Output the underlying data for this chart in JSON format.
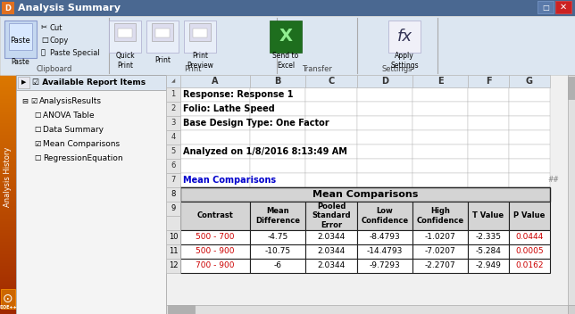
{
  "title_bar": "Analysis Summary",
  "title_bar_bg": "#4a6891",
  "title_bar_fg": "#ffffff",
  "ribbon_bg": "#dce6f1",
  "ribbon_group_labels": [
    "Clipboard",
    "Print",
    "Transfer",
    "Settings"
  ],
  "left_panel_header": "Available Report Items",
  "tree_items": [
    {
      "label": "AnalysisResults",
      "indent": 0,
      "checked": true
    },
    {
      "label": "ANOVA Table",
      "indent": 1,
      "checked": false
    },
    {
      "label": "Data Summary",
      "indent": 1,
      "checked": false
    },
    {
      "label": "Mean Comparisons",
      "indent": 1,
      "checked": true
    },
    {
      "label": "RegressionEquation",
      "indent": 1,
      "checked": false
    }
  ],
  "sidebar_label": "Analysis History",
  "sidebar_logo": "DOE++",
  "col_letters": [
    "A",
    "B",
    "C",
    "D",
    "E",
    "F",
    "G"
  ],
  "row_numbers": [
    "1",
    "2",
    "3",
    "4",
    "5",
    "6",
    "7",
    "8",
    "9",
    "10",
    "11",
    "12"
  ],
  "info_rows": [
    {
      "row": 0,
      "text": "Response: Response 1",
      "bold": true,
      "color": "#000000"
    },
    {
      "row": 1,
      "text": "Folio: Lathe Speed",
      "bold": true,
      "color": "#000000"
    },
    {
      "row": 2,
      "text": "Base Design Type: One Factor",
      "bold": true,
      "color": "#000000"
    },
    {
      "row": 3,
      "text": "",
      "bold": false,
      "color": "#000000"
    },
    {
      "row": 4,
      "text": "Analyzed on 1/8/2016 8:13:49 AM",
      "bold": true,
      "color": "#000000"
    },
    {
      "row": 5,
      "text": "",
      "bold": false,
      "color": "#000000"
    },
    {
      "row": 6,
      "text": "Mean Comparisons",
      "bold": true,
      "color": "#0000cc"
    }
  ],
  "table_title": "Mean Comparisons",
  "col_headers": [
    "Contrast",
    "Mean\nDifference",
    "Pooled\nStandard\nError",
    "Low\nConfidence",
    "High\nConfidence",
    "T Value",
    "P Value"
  ],
  "data_rows": [
    [
      "500 - 700",
      "-4.75",
      "2.0344",
      "-8.4793",
      "-1.0207",
      "-2.335",
      "0.0444"
    ],
    [
      "500 - 900",
      "-10.75",
      "2.0344",
      "-14.4793",
      "-7.0207",
      "-5.284",
      "0.0005"
    ],
    [
      "700 - 900",
      "-6",
      "2.0344",
      "-9.7293",
      "-2.2707",
      "-2.949",
      "0.0162"
    ]
  ],
  "contrast_color": "#cc0000",
  "pvalue_color": "#cc0000",
  "header_bg": "#d4d4d4",
  "cell_bg": "#ffffff",
  "row_num_bg": "#e4e4e4",
  "col_header_bg": "#dce6f1",
  "grid_color": "#b8b8b8",
  "table_border": "#222222"
}
